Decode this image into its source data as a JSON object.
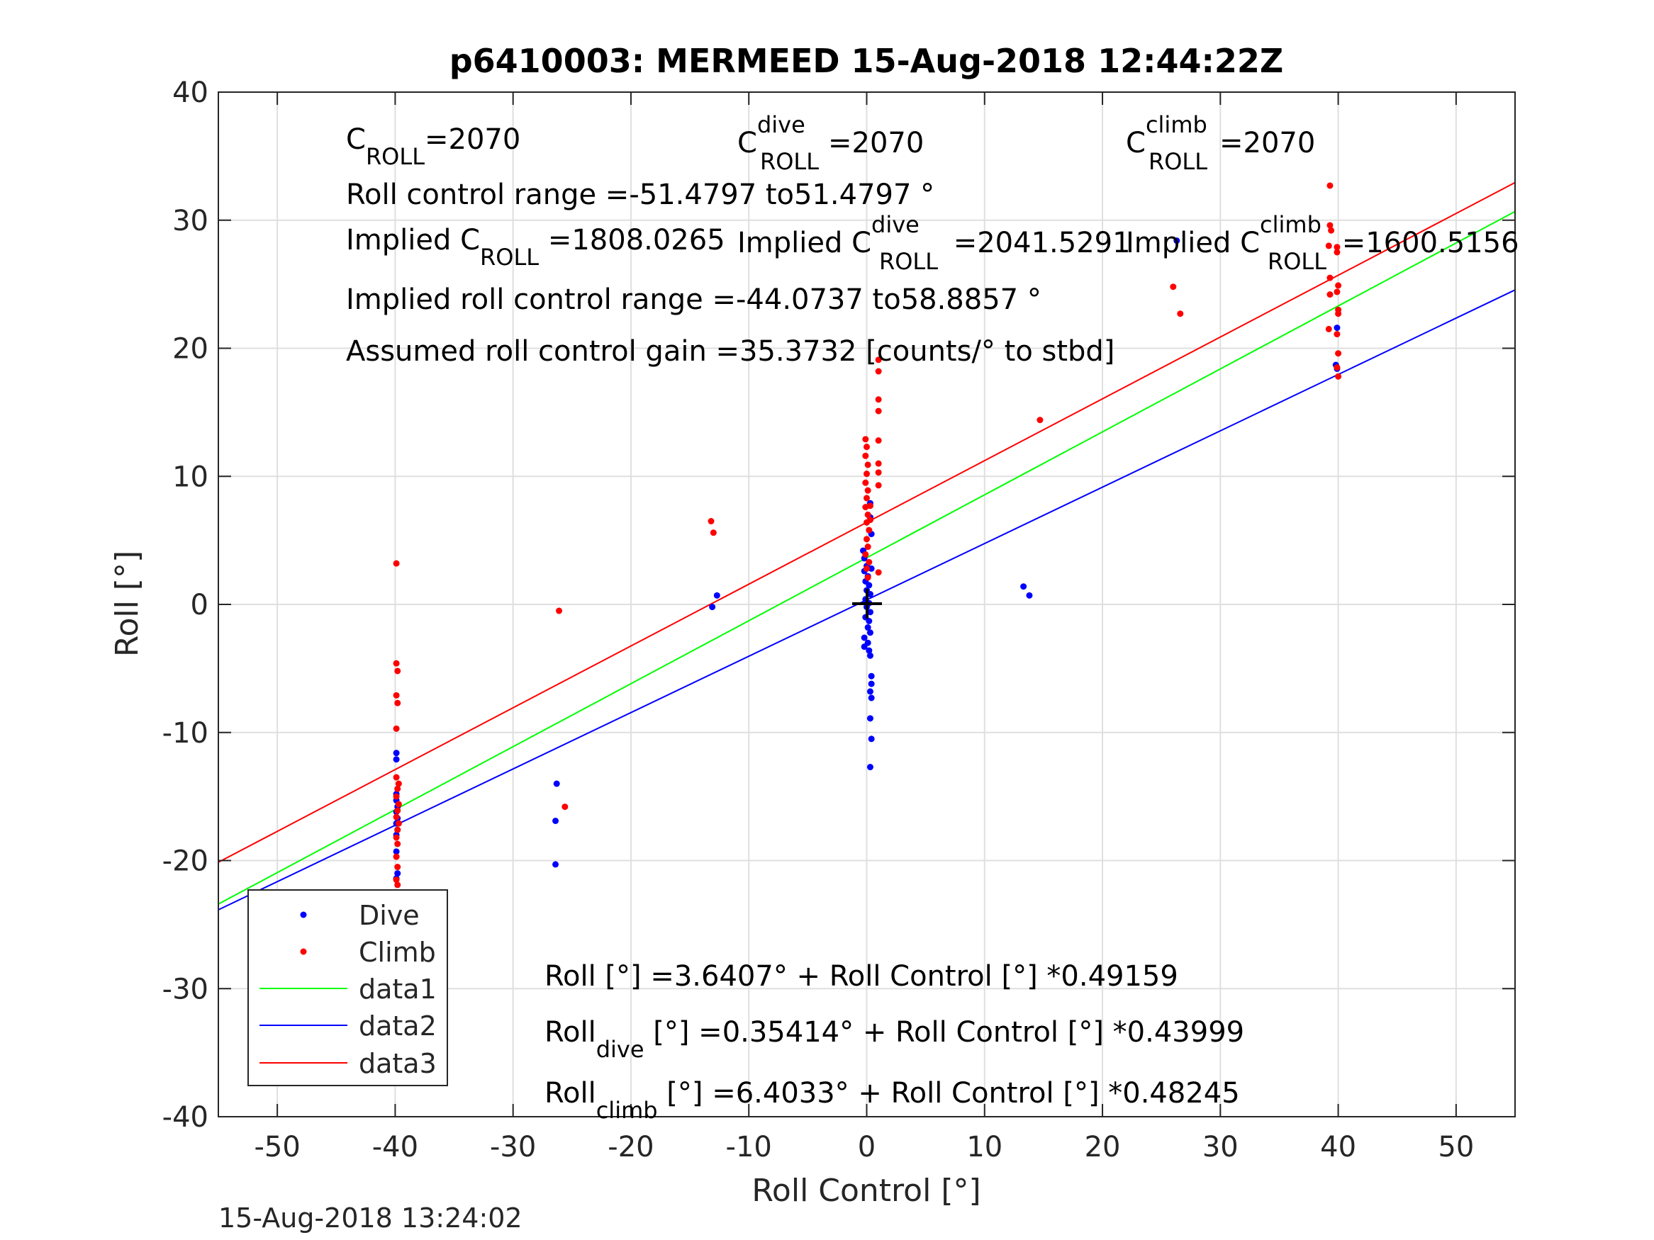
{
  "chart_data": {
    "type": "scatter",
    "title": "p6410003: MERMEED 15-Aug-2018 12:44:22Z",
    "xlabel": "Roll Control [°]",
    "ylabel": "Roll [°]",
    "xlim": [
      -55,
      55
    ],
    "ylim": [
      -40,
      40
    ],
    "xticks": [
      "-50",
      "-40",
      "-30",
      "-20",
      "-10",
      "0",
      "10",
      "20",
      "30",
      "40",
      "50"
    ],
    "yticks": [
      "-40",
      "-30",
      "-20",
      "-10",
      "0",
      "10",
      "20",
      "30",
      "40"
    ],
    "grid": true,
    "legend_position": "bottom-left",
    "series": [
      {
        "name": "Dive",
        "kind": "points",
        "color": "#0000ff",
        "points": [
          [
            -39.9,
            -11.6
          ],
          [
            -39.9,
            -12.1
          ],
          [
            -39.9,
            -14.8
          ],
          [
            -39.9,
            -15.3
          ],
          [
            -39.8,
            -15.8
          ],
          [
            -39.9,
            -16.2
          ],
          [
            -39.8,
            -16.7
          ],
          [
            -39.9,
            -17.1
          ],
          [
            -39.8,
            -17.6
          ],
          [
            -39.9,
            -18.0
          ],
          [
            -39.9,
            -19.3
          ],
          [
            -39.8,
            -21.0
          ],
          [
            -39.9,
            -21.4
          ],
          [
            -26.3,
            -14.0
          ],
          [
            -26.4,
            -16.9
          ],
          [
            -26.4,
            -20.3
          ],
          [
            -13.1,
            -0.2
          ],
          [
            -12.7,
            0.7
          ],
          [
            -0.3,
            4.2
          ],
          [
            -0.2,
            3.6
          ],
          [
            0.0,
            3.0
          ],
          [
            -0.2,
            2.6
          ],
          [
            0.1,
            2.2
          ],
          [
            -0.1,
            1.8
          ],
          [
            0.2,
            1.5
          ],
          [
            0.0,
            1.1
          ],
          [
            0.3,
            0.8
          ],
          [
            -0.1,
            0.4
          ],
          [
            0.2,
            0.1
          ],
          [
            0.0,
            -0.2
          ],
          [
            0.3,
            -0.6
          ],
          [
            -0.1,
            -1.0
          ],
          [
            0.2,
            -1.3
          ],
          [
            0.1,
            -1.8
          ],
          [
            0.3,
            -2.2
          ],
          [
            -0.2,
            -2.6
          ],
          [
            0.1,
            -3.0
          ],
          [
            -0.2,
            -3.3
          ],
          [
            0.2,
            -3.6
          ],
          [
            0.3,
            -4.0
          ],
          [
            0.4,
            -5.6
          ],
          [
            0.4,
            -6.2
          ],
          [
            0.3,
            -6.8
          ],
          [
            0.4,
            -7.3
          ],
          [
            0.3,
            -8.9
          ],
          [
            0.4,
            -10.5
          ],
          [
            0.3,
            -12.7
          ],
          [
            0.4,
            2.8
          ],
          [
            0.3,
            6.8
          ],
          [
            0.3,
            7.9
          ],
          [
            0.4,
            5.5
          ],
          [
            13.3,
            1.4
          ],
          [
            13.8,
            0.7
          ],
          [
            26.3,
            28.4
          ],
          [
            39.9,
            21.6
          ],
          [
            39.8,
            18.7
          ],
          [
            39.9,
            18.4
          ]
        ]
      },
      {
        "name": "Climb",
        "kind": "points",
        "color": "#ff0000",
        "points": [
          [
            -39.9,
            3.2
          ],
          [
            -39.9,
            -4.6
          ],
          [
            -39.8,
            -5.2
          ],
          [
            -39.9,
            -7.1
          ],
          [
            -39.8,
            -7.7
          ],
          [
            -39.9,
            -9.7
          ],
          [
            -39.9,
            -13.5
          ],
          [
            -39.7,
            -14.0
          ],
          [
            -39.8,
            -14.4
          ],
          [
            -39.9,
            -15.0
          ],
          [
            -39.7,
            -15.6
          ],
          [
            -39.8,
            -16.1
          ],
          [
            -39.9,
            -16.6
          ],
          [
            -39.7,
            -17.1
          ],
          [
            -39.8,
            -17.6
          ],
          [
            -39.9,
            -18.2
          ],
          [
            -39.8,
            -18.7
          ],
          [
            -39.9,
            -19.7
          ],
          [
            -39.8,
            -20.5
          ],
          [
            -39.9,
            -21.5
          ],
          [
            -39.8,
            -21.9
          ],
          [
            -26.1,
            -0.5
          ],
          [
            -25.6,
            -15.8
          ],
          [
            -13.2,
            6.5
          ],
          [
            -13.0,
            5.6
          ],
          [
            -0.1,
            12.9
          ],
          [
            0.0,
            12.3
          ],
          [
            -0.1,
            11.6
          ],
          [
            0.1,
            10.9
          ],
          [
            0.0,
            10.2
          ],
          [
            -0.1,
            9.5
          ],
          [
            0.1,
            8.9
          ],
          [
            0.0,
            8.3
          ],
          [
            -0.1,
            7.6
          ],
          [
            0.1,
            7.0
          ],
          [
            0.0,
            6.4
          ],
          [
            0.2,
            5.8
          ],
          [
            0.0,
            5.1
          ],
          [
            0.1,
            4.5
          ],
          [
            -0.1,
            3.9
          ],
          [
            0.2,
            3.3
          ],
          [
            0.0,
            2.8
          ],
          [
            0.1,
            2.1
          ],
          [
            0.3,
            6.6
          ],
          [
            0.3,
            7.7
          ],
          [
            1.0,
            19.1
          ],
          [
            1.0,
            18.2
          ],
          [
            1.0,
            16.0
          ],
          [
            1.0,
            15.1
          ],
          [
            1.0,
            12.8
          ],
          [
            1.0,
            11.0
          ],
          [
            1.0,
            10.3
          ],
          [
            1.0,
            9.3
          ],
          [
            1.0,
            2.5
          ],
          [
            14.7,
            14.4
          ],
          [
            26.0,
            24.8
          ],
          [
            26.6,
            22.7
          ],
          [
            39.3,
            32.7
          ],
          [
            39.3,
            29.6
          ],
          [
            39.4,
            29.2
          ],
          [
            39.2,
            28.0
          ],
          [
            39.3,
            25.5
          ],
          [
            39.3,
            24.2
          ],
          [
            39.2,
            21.5
          ],
          [
            39.9,
            27.9
          ],
          [
            39.9,
            27.5
          ],
          [
            40.0,
            24.9
          ],
          [
            39.9,
            24.4
          ],
          [
            40.0,
            23.0
          ],
          [
            40.0,
            22.7
          ],
          [
            39.9,
            21.1
          ],
          [
            40.0,
            19.6
          ],
          [
            39.9,
            18.5
          ],
          [
            40.0,
            17.8
          ]
        ]
      },
      {
        "name": "data1",
        "kind": "line",
        "color": "#00ff00",
        "intercept": 3.6407,
        "slope": 0.49159
      },
      {
        "name": "data2",
        "kind": "line",
        "color": "#0000ff",
        "intercept": 0.35414,
        "slope": 0.43999
      },
      {
        "name": "data3",
        "kind": "line",
        "color": "#ff0000",
        "intercept": 6.4033,
        "slope": 0.48245
      }
    ],
    "annotations": {
      "c_roll": {
        "base": "C",
        "sub": "ROLL",
        "value": "=2070"
      },
      "c_roll_dive": {
        "base": "C",
        "sup": "dive",
        "sub": "ROLL",
        "value": "=2070"
      },
      "c_roll_climb": {
        "base": "C",
        "sup": "climb",
        "sub": "ROLL",
        "value": "=2070"
      },
      "roll_control_range": "Roll control range =-51.4797 to51.4797 °",
      "implied_c_roll": {
        "prefix": "Implied C",
        "sub": "ROLL",
        "value": " =1808.0265"
      },
      "implied_c_roll_dive": {
        "prefix": "Implied C",
        "sup": "dive",
        "sub": "ROLL",
        "value": " =2041.5291"
      },
      "implied_c_roll_climb": {
        "prefix": "Implied C",
        "sup": "climb",
        "sub": "ROLL",
        "value": " =1600.5156"
      },
      "implied_range": "Implied roll control range =-44.0737 to58.8857 °",
      "gain": "Assumed roll control gain =35.3732 [counts/° to stbd]",
      "fit_all": "Roll [°] =3.6407° + Roll Control [°] *0.49159",
      "fit_dive": {
        "base": "Roll",
        "sub": "dive",
        "rest": " [°] =0.35414° + Roll Control [°] *0.43999"
      },
      "fit_climb": {
        "base": "Roll",
        "sub": "climb",
        "rest": " [°] =6.4033° + Roll Control [°] *0.48245"
      }
    },
    "timestamp": "15-Aug-2018 13:24:02"
  }
}
